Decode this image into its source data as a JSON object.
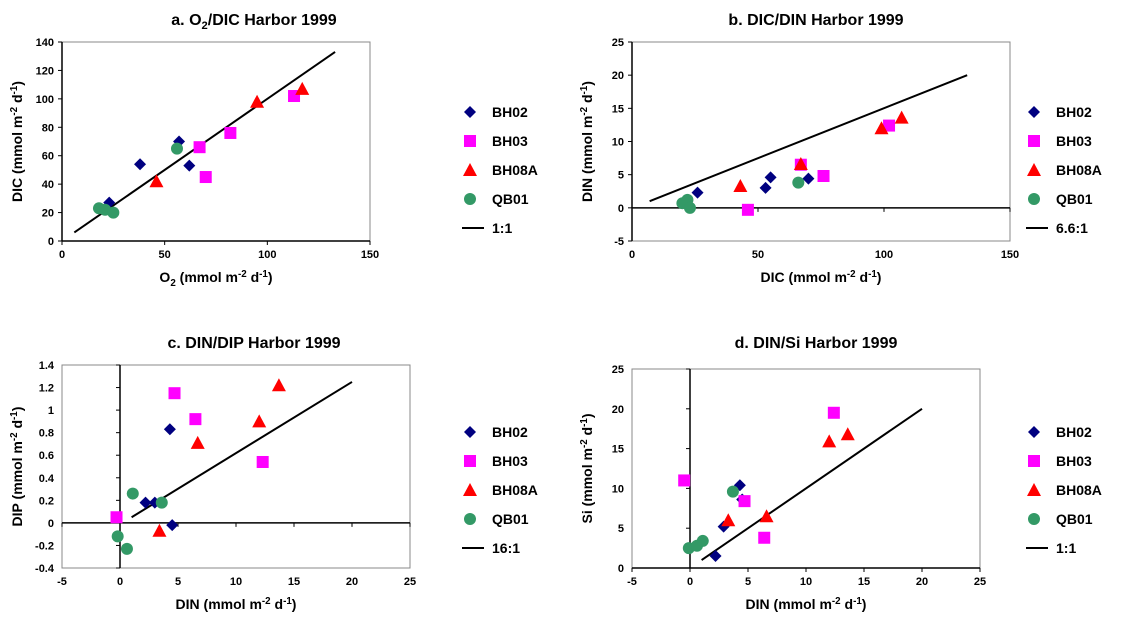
{
  "chart_data": [
    {
      "type": "scatter",
      "title": "a. O2/DIC Harbor 1999",
      "xlabel": "O2 (mmol m-2 d-1)",
      "ylabel": "DIC (mmol m-2 d-1)",
      "xlim": [
        0,
        150
      ],
      "ylim": [
        0,
        140
      ],
      "xticks": [
        0,
        50,
        100,
        150
      ],
      "yticks": [
        0,
        20,
        40,
        60,
        80,
        100,
        120,
        140
      ],
      "series": [
        {
          "name": "BH02",
          "x": [
            23,
            38,
            57,
            62
          ],
          "y": [
            27,
            54,
            70,
            53
          ]
        },
        {
          "name": "BH03",
          "x": [
            67,
            70,
            82,
            113
          ],
          "y": [
            66,
            45,
            76,
            102
          ]
        },
        {
          "name": "BH08A",
          "x": [
            46,
            95,
            117
          ],
          "y": [
            42,
            98,
            107
          ]
        },
        {
          "name": "QB01",
          "x": [
            18,
            21,
            25,
            56
          ],
          "y": [
            23,
            22,
            20,
            65
          ]
        }
      ],
      "reference_line": {
        "label": "1:1",
        "from": [
          6,
          6
        ],
        "to": [
          133,
          133
        ]
      }
    },
    {
      "type": "scatter",
      "title": "b. DIC/DIN Harbor 1999",
      "xlabel": "DIC (mmol m-2 d-1)",
      "ylabel": "DIN (mmol m-2 d-1)",
      "xlim": [
        0,
        150
      ],
      "ylim": [
        -5,
        25
      ],
      "xticks": [
        0,
        50,
        100,
        150
      ],
      "yticks": [
        -5,
        0,
        5,
        10,
        15,
        20,
        25
      ],
      "series": [
        {
          "name": "BH02",
          "x": [
            26,
            53,
            55,
            70
          ],
          "y": [
            2.3,
            3.0,
            4.6,
            4.4
          ]
        },
        {
          "name": "BH03",
          "x": [
            46,
            67,
            76,
            102
          ],
          "y": [
            -0.3,
            6.5,
            4.8,
            12.4
          ]
        },
        {
          "name": "BH08A",
          "x": [
            43,
            67,
            99,
            107
          ],
          "y": [
            3.3,
            6.6,
            12.0,
            13.6
          ]
        },
        {
          "name": "QB01",
          "x": [
            20,
            22,
            23,
            66
          ],
          "y": [
            0.7,
            1.2,
            0.0,
            3.8
          ]
        }
      ],
      "reference_line": {
        "label": "6.6:1",
        "from": [
          7,
          1
        ],
        "to": [
          133,
          20
        ]
      }
    },
    {
      "type": "scatter",
      "title": "c. DIN/DIP Harbor 1999",
      "xlabel": "DIN (mmol m-2 d-1)",
      "ylabel": "DIP (mmol m-2 d-1)",
      "xlim": [
        -5,
        25
      ],
      "ylim": [
        -0.4,
        1.4
      ],
      "xticks": [
        -5,
        0,
        5,
        10,
        15,
        20,
        25
      ],
      "yticks": [
        -0.4,
        -0.2,
        0,
        0.2,
        0.4,
        0.6,
        0.8,
        1,
        1.2,
        1.4
      ],
      "series": [
        {
          "name": "BH02",
          "x": [
            2.2,
            3.0,
            4.3,
            4.5
          ],
          "y": [
            0.18,
            0.18,
            0.83,
            -0.02
          ]
        },
        {
          "name": "BH03",
          "x": [
            -0.3,
            4.7,
            6.5,
            12.3
          ],
          "y": [
            0.05,
            1.15,
            0.92,
            0.54
          ]
        },
        {
          "name": "BH08A",
          "x": [
            3.4,
            6.7,
            12.0,
            13.7
          ],
          "y": [
            -0.07,
            0.71,
            0.9,
            1.22
          ]
        },
        {
          "name": "QB01",
          "x": [
            -0.2,
            0.6,
            1.1,
            3.6
          ],
          "y": [
            -0.12,
            -0.23,
            0.26,
            0.18
          ]
        }
      ],
      "reference_line": {
        "label": "16:1",
        "from": [
          1,
          0.05
        ],
        "to": [
          20,
          1.25
        ]
      }
    },
    {
      "type": "scatter",
      "title": "d. DIN/Si Harbor 1999",
      "xlabel": "DIN (mmol m-2 d-1)",
      "ylabel": "Si (mmol m-2 d-1)",
      "xlim": [
        -5,
        25
      ],
      "ylim": [
        0,
        25
      ],
      "xticks": [
        -5,
        0,
        5,
        10,
        15,
        20,
        25
      ],
      "yticks": [
        0,
        5,
        10,
        15,
        20,
        25
      ],
      "series": [
        {
          "name": "BH02",
          "x": [
            2.2,
            2.9,
            4.3,
            4.5
          ],
          "y": [
            1.5,
            5.2,
            10.4,
            8.6
          ]
        },
        {
          "name": "BH03",
          "x": [
            -0.5,
            4.7,
            6.4,
            12.4
          ],
          "y": [
            11.0,
            8.4,
            3.8,
            19.5
          ]
        },
        {
          "name": "BH08A",
          "x": [
            3.3,
            6.6,
            12.0,
            13.6
          ],
          "y": [
            6.0,
            6.5,
            15.9,
            16.8
          ]
        },
        {
          "name": "QB01",
          "x": [
            -0.1,
            0.6,
            1.1,
            3.7
          ],
          "y": [
            2.5,
            2.8,
            3.4,
            9.6
          ]
        }
      ],
      "reference_line": {
        "label": "1:1",
        "from": [
          1,
          1
        ],
        "to": [
          20,
          20
        ]
      }
    }
  ],
  "colors": {
    "BH02": "#000080",
    "BH03": "#FF00FF",
    "BH08A": "#FF0000",
    "QB01": "#339966",
    "line": "#000000"
  }
}
